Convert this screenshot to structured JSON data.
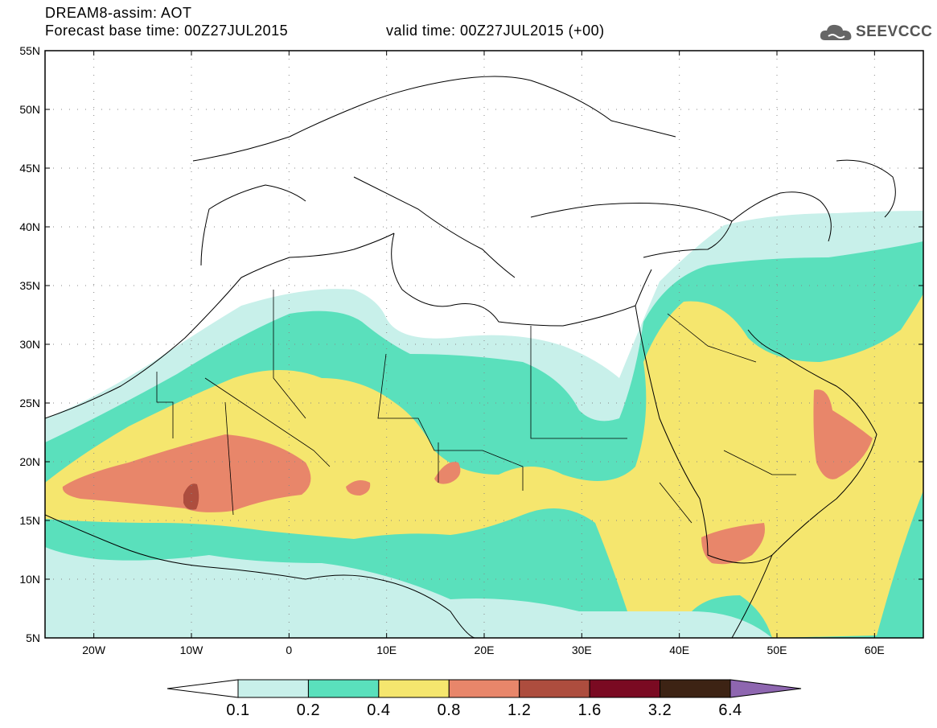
{
  "title": {
    "line1": "DREAM8-assim: AOT",
    "line2_base": "Forecast base time: 00Z27JUL2015",
    "line2_valid": "valid time: 00Z27JUL2015 (+00)"
  },
  "logo": {
    "text": "SEEVCCC",
    "icon": "cloud-icon"
  },
  "map": {
    "lon_range": [
      -25,
      65
    ],
    "lat_range": [
      5,
      55
    ],
    "lat_ticks": [
      {
        "value": 5,
        "label": "5N"
      },
      {
        "value": 10,
        "label": "10N"
      },
      {
        "value": 15,
        "label": "15N"
      },
      {
        "value": 20,
        "label": "20N"
      },
      {
        "value": 25,
        "label": "25N"
      },
      {
        "value": 30,
        "label": "30N"
      },
      {
        "value": 35,
        "label": "35N"
      },
      {
        "value": 40,
        "label": "40N"
      },
      {
        "value": 45,
        "label": "45N"
      },
      {
        "value": 50,
        "label": "50N"
      },
      {
        "value": 55,
        "label": "55N"
      }
    ],
    "lon_ticks": [
      {
        "value": -20,
        "label": "20W"
      },
      {
        "value": -10,
        "label": "10W"
      },
      {
        "value": 0,
        "label": "0"
      },
      {
        "value": 10,
        "label": "10E"
      },
      {
        "value": 20,
        "label": "20E"
      },
      {
        "value": 30,
        "label": "30E"
      },
      {
        "value": 40,
        "label": "40E"
      },
      {
        "value": 50,
        "label": "50E"
      },
      {
        "value": 60,
        "label": "60E"
      }
    ],
    "grid": "dotted"
  },
  "colorbar": {
    "labels": [
      "0.1",
      "0.2",
      "0.4",
      "0.8",
      "1.2",
      "1.6",
      "3.2",
      "6.4"
    ],
    "colors": [
      "#ffffff",
      "#c8f0ea",
      "#5ae0bc",
      "#f5e66e",
      "#e8866a",
      "#ad4d3e",
      "#7a0a22",
      "#3d2314",
      "#8e66b0"
    ]
  }
}
